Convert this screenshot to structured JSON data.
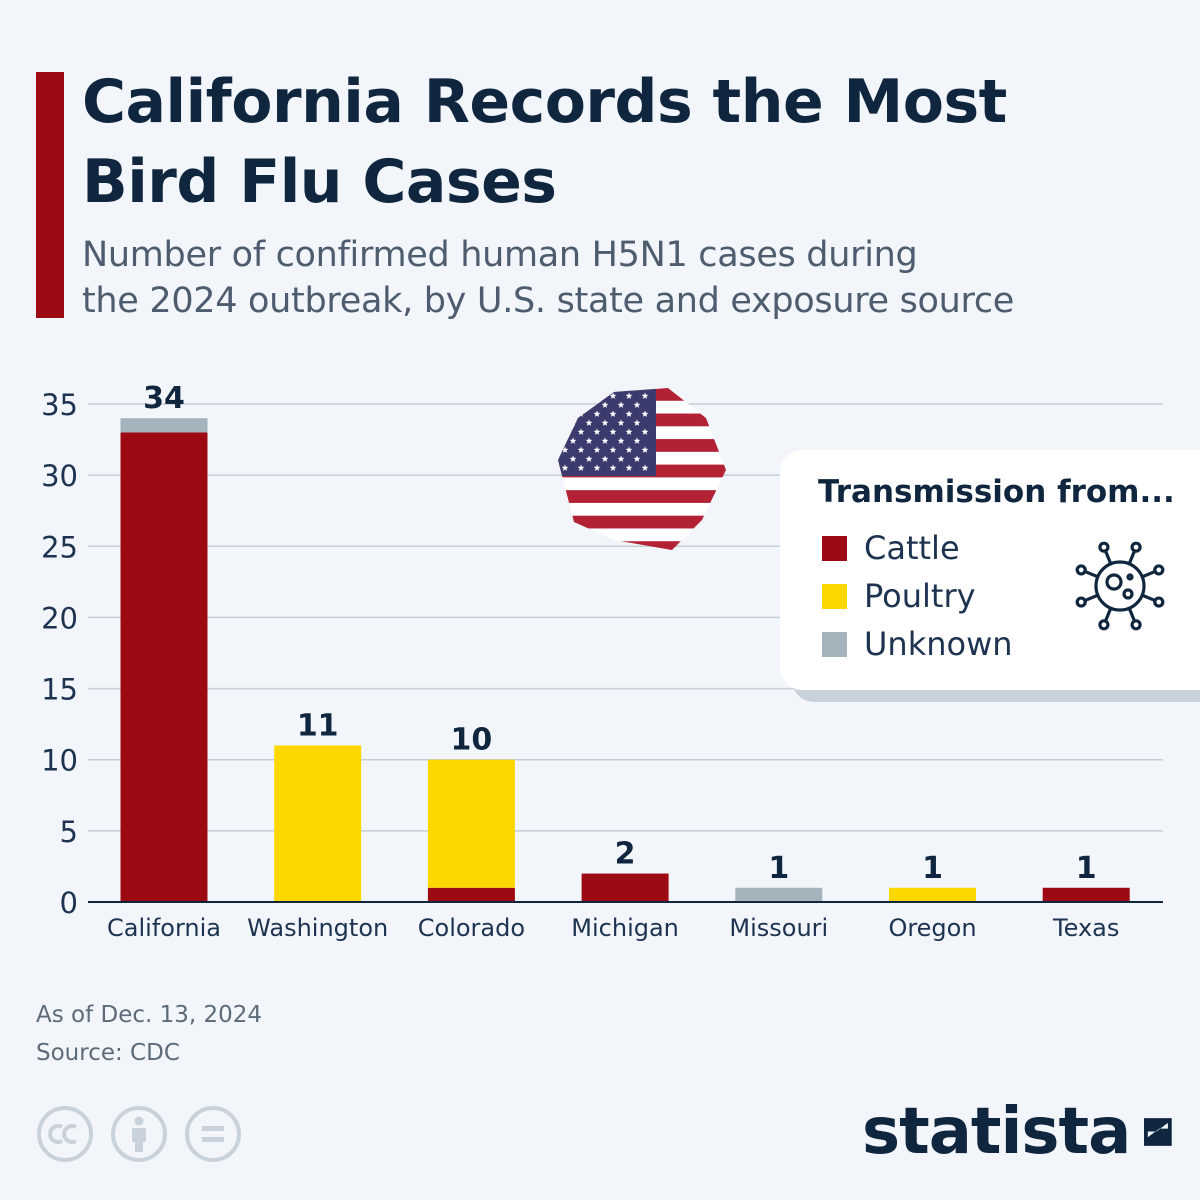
{
  "title_line1": "California Records the Most",
  "title_line2": "Bird Flu Cases",
  "subtitle_line1": "Number of confirmed human H5N1 cases during",
  "subtitle_line2": "the 2024 outbreak, by U.S. state and exposure source",
  "legend": {
    "title": "Transmission from...",
    "items": [
      {
        "label": "Cattle",
        "color": "#9e0a13"
      },
      {
        "label": "Poultry",
        "color": "#fdd700"
      },
      {
        "label": "Unknown",
        "color": "#a4b3bc"
      }
    ]
  },
  "chart_data": {
    "type": "bar",
    "stacked": true,
    "categories": [
      "California",
      "Washington",
      "Colorado",
      "Michigan",
      "Missouri",
      "Oregon",
      "Texas"
    ],
    "series": [
      {
        "name": "Cattle",
        "color": "#9e0a13",
        "values": [
          33,
          0,
          1,
          2,
          0,
          0,
          1
        ]
      },
      {
        "name": "Poultry",
        "color": "#fdd700",
        "values": [
          0,
          11,
          9,
          0,
          0,
          1,
          0
        ]
      },
      {
        "name": "Unknown",
        "color": "#a4b3bc",
        "values": [
          1,
          0,
          0,
          0,
          1,
          0,
          0
        ]
      }
    ],
    "totals": [
      34,
      11,
      10,
      2,
      1,
      1,
      1
    ],
    "ylim": [
      0,
      35
    ],
    "yticks": [
      0,
      5,
      10,
      15,
      20,
      25,
      30,
      35
    ],
    "grid": true,
    "legend_position": "right"
  },
  "notes": {
    "as_of": "As of Dec. 13, 2024",
    "source": "Source: CDC"
  },
  "brand": "statista",
  "icons": [
    "us-flag-icon",
    "virus-icon",
    "cc-icon",
    "attribution-icon",
    "no-derivatives-icon",
    "statista-logo-icon"
  ]
}
